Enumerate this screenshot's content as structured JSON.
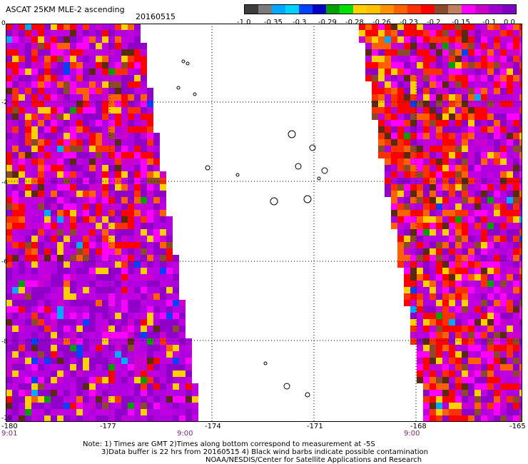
{
  "header": {
    "title": "ASCAT 25KM MLE-2 ascending",
    "date": "20160515"
  },
  "colorbar": {
    "colors": [
      "#3c3c3c",
      "#7a7a7a",
      "#00a8ff",
      "#00d2ff",
      "#0040ff",
      "#0000c8",
      "#00a000",
      "#00e000",
      "#ffd000",
      "#ffc000",
      "#ff9000",
      "#ff6000",
      "#ff3000",
      "#ff0000",
      "#8b4a2b",
      "#c08060",
      "#ff00ff",
      "#cc00cc",
      "#a000d0",
      "#8000c8"
    ],
    "labels": [
      "-1.0",
      "-0.35",
      "-0.3",
      "-0.29",
      "-0.28",
      "-0.26",
      "-0.23",
      "-0.2",
      "-0.15",
      "-0.1",
      "0.0"
    ]
  },
  "map": {
    "y_labels": [
      "0",
      "-2",
      "-4",
      "-6",
      "-8",
      "-10"
    ],
    "x_labels": [
      "-180",
      "-177",
      "-174",
      "-171",
      "-168",
      "-165"
    ],
    "times": [
      "9:01",
      "9:00",
      "9:00"
    ],
    "palette": [
      "#9000c8",
      "#b000e0",
      "#c000e0",
      "#ff00ff",
      "#cc00cc",
      "#ff0000",
      "#ff3000",
      "#ff6000",
      "#ffd000",
      "#5a2a10",
      "#8b4a2b",
      "#00a000",
      "#0040ff",
      "#00a8ff"
    ]
  },
  "footer": {
    "line1": "Note: 1) Times are GMT 2)Times along bottom correspond to measurement at -5S",
    "line2": "3)Data buffer is 22 hrs from 20160515 4) Black wind barbs indicate possible contamination",
    "line3": "NOAA/NESDIS/Center for Satellite Applications and Research"
  }
}
